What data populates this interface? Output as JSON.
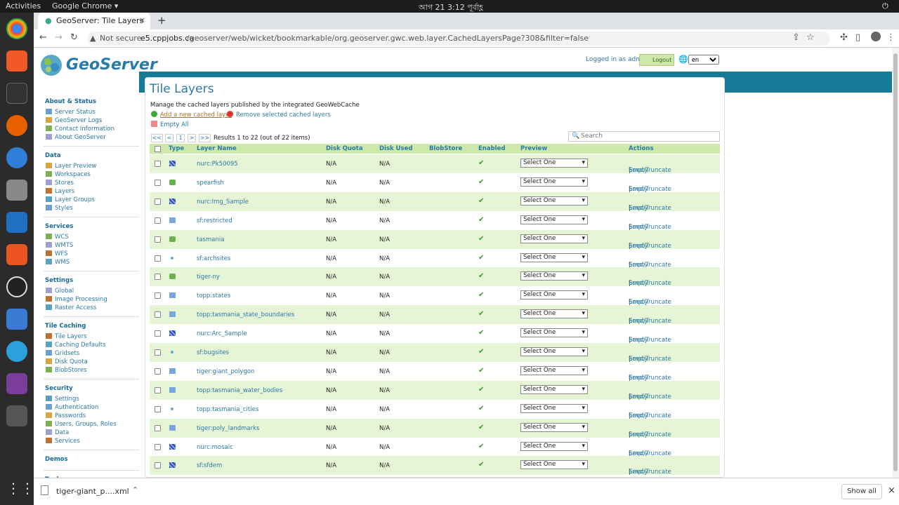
{
  "topbar": {
    "activities": "Activities",
    "app": "Google Chrome ▾",
    "clock": "আগ 21  3:12 পূর্বাহ্ণ"
  },
  "browser": {
    "tab_title": "GeoServer: Tile Layers",
    "not_secure": "Not secure",
    "url_host": "e5.cppjobs.ca",
    "url_path": "/geoserver/web/wicket/bookmarkable/org.geoserver.gwc.web.layer.CachedLayersPage?308&filter=false"
  },
  "header": {
    "logo": "GeoServer",
    "logged_in": "Logged in as admin.",
    "logout": "Logout",
    "lang": "en"
  },
  "sidebar": [
    {
      "title": "About & Status",
      "items": [
        "Server Status",
        "GeoServer Logs",
        "Contact Information",
        "About GeoServer"
      ]
    },
    {
      "title": "Data",
      "items": [
        "Layer Preview",
        "Workspaces",
        "Stores",
        "Layers",
        "Layer Groups",
        "Styles"
      ]
    },
    {
      "title": "Services",
      "items": [
        "WCS",
        "WMTS",
        "WFS",
        "WMS"
      ]
    },
    {
      "title": "Settings",
      "items": [
        "Global",
        "Image Processing",
        "Raster Access"
      ]
    },
    {
      "title": "Tile Caching",
      "items": [
        "Tile Layers",
        "Caching Defaults",
        "Gridsets",
        "Disk Quota",
        "BlobStores"
      ]
    },
    {
      "title": "Security",
      "items": [
        "Settings",
        "Authentication",
        "Passwords",
        "Users, Groups, Roles",
        "Data",
        "Services"
      ]
    },
    {
      "title": "Demos",
      "items": []
    },
    {
      "title": "Tools",
      "items": []
    }
  ],
  "main": {
    "title": "Tile Layers",
    "description": "Manage the cached layers published by the integrated GeoWebCache",
    "add_link": "Add a new cached layer",
    "remove_link": "Remove selected cached layers",
    "empty_all": "Empty All",
    "pager": {
      "first": "<<",
      "prev": "<",
      "page": "1",
      "next": ">",
      "last": ">>",
      "results": "Results 1 to 22 (out of 22 items)"
    },
    "search_placeholder": "Search",
    "columns": [
      "Type",
      "Layer Name",
      "Disk Quota",
      "Disk Used",
      "BlobStore",
      "Enabled",
      "Preview",
      "Actions"
    ],
    "rows": [
      {
        "type": "raster",
        "name": "nurc:Pk50095",
        "quota": "N/A",
        "used": "N/A"
      },
      {
        "type": "group",
        "name": "spearfish",
        "quota": "N/A",
        "used": "N/A"
      },
      {
        "type": "raster",
        "name": "nurc:Img_Sample",
        "quota": "N/A",
        "used": "N/A"
      },
      {
        "type": "polygon",
        "name": "sf:restricted",
        "quota": "N/A",
        "used": "N/A"
      },
      {
        "type": "group",
        "name": "tasmania",
        "quota": "N/A",
        "used": "N/A"
      },
      {
        "type": "point",
        "name": "sf:archsites",
        "quota": "N/A",
        "used": "N/A"
      },
      {
        "type": "group",
        "name": "tiger-ny",
        "quota": "N/A",
        "used": "N/A"
      },
      {
        "type": "polygon",
        "name": "topp:states",
        "quota": "N/A",
        "used": "N/A"
      },
      {
        "type": "polygon",
        "name": "topp:tasmania_state_boundaries",
        "quota": "N/A",
        "used": "N/A"
      },
      {
        "type": "raster",
        "name": "nurc:Arc_Sample",
        "quota": "N/A",
        "used": "N/A"
      },
      {
        "type": "point",
        "name": "sf:bugsites",
        "quota": "N/A",
        "used": "N/A"
      },
      {
        "type": "polygon",
        "name": "tiger:giant_polygon",
        "quota": "N/A",
        "used": "N/A"
      },
      {
        "type": "polygon",
        "name": "topp:tasmania_water_bodies",
        "quota": "N/A",
        "used": "N/A"
      },
      {
        "type": "point",
        "name": "topp:tasmania_cities",
        "quota": "N/A",
        "used": "N/A"
      },
      {
        "type": "polygon",
        "name": "tiger:poly_landmarks",
        "quota": "N/A",
        "used": "N/A"
      },
      {
        "type": "raster",
        "name": "nurc:mosaic",
        "quota": "N/A",
        "used": "N/A"
      },
      {
        "type": "raster",
        "name": "sf:sfdem",
        "quota": "N/A",
        "used": "N/A"
      }
    ],
    "enabled_mark": "✔",
    "preview_select": "Select One",
    "seed_link": "Seed/Truncate",
    "sep": "|",
    "empty_link": "Empty"
  },
  "downloads": {
    "file": "tiger-giant_p....xml",
    "show_all": "Show all"
  }
}
